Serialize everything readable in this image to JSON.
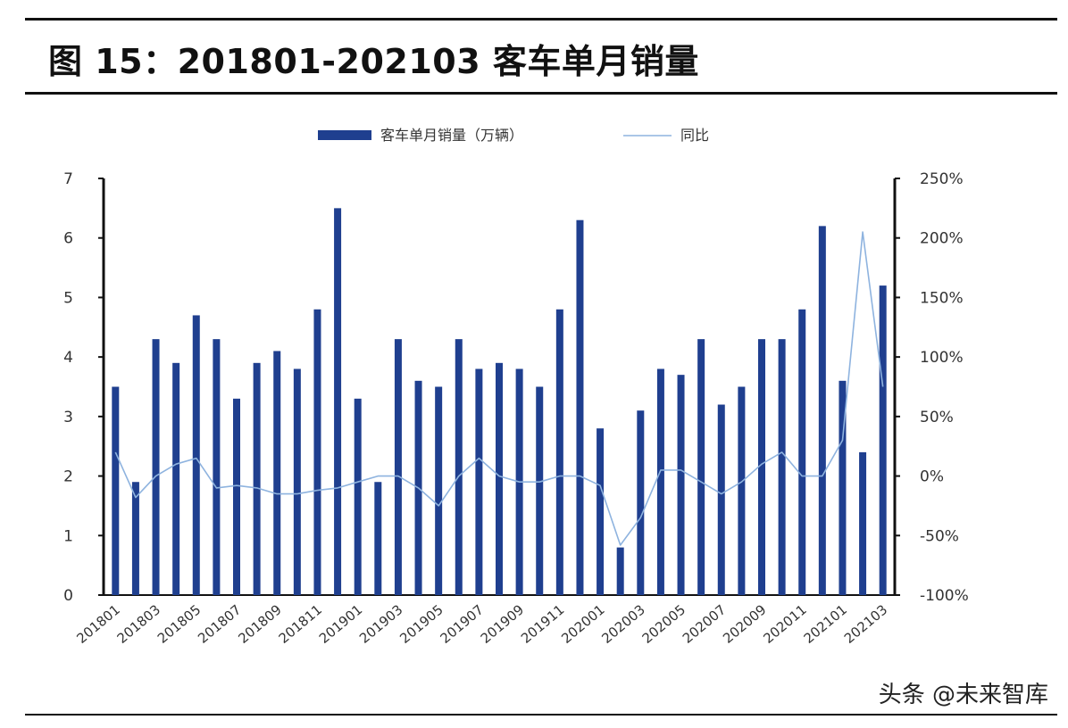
{
  "title": "图 15：201801-202103 客车单月销量",
  "watermark": "头条 @未来智库",
  "chart_data": {
    "type": "bar",
    "legend": [
      "客车单月销量（万辆）",
      "同比"
    ],
    "legend_position": "top",
    "categories": [
      "201801",
      "201802",
      "201803",
      "201804",
      "201805",
      "201806",
      "201807",
      "201808",
      "201809",
      "201810",
      "201811",
      "201812",
      "201901",
      "201902",
      "201903",
      "201904",
      "201905",
      "201906",
      "201907",
      "201908",
      "201909",
      "201910",
      "201911",
      "201912",
      "202001",
      "202002",
      "202003",
      "202004",
      "202005",
      "202006",
      "202007",
      "202008",
      "202009",
      "202010",
      "202011",
      "202012",
      "202101",
      "202102",
      "202103"
    ],
    "xtick_labels": [
      "201801",
      "201803",
      "201805",
      "201807",
      "201809",
      "201811",
      "201901",
      "201903",
      "201905",
      "201907",
      "201909",
      "201911",
      "202001",
      "202003",
      "202005",
      "202007",
      "202009",
      "202011",
      "202101",
      "202103"
    ],
    "series": [
      {
        "name": "客车单月销量（万辆）",
        "type": "bar",
        "axis": "left",
        "color": "#1f3f8f",
        "values": [
          3.5,
          1.9,
          4.3,
          3.9,
          4.7,
          4.3,
          3.3,
          3.9,
          4.1,
          3.8,
          4.8,
          6.5,
          3.3,
          1.9,
          4.3,
          3.6,
          3.5,
          4.3,
          3.8,
          3.9,
          3.8,
          3.5,
          4.8,
          6.3,
          2.8,
          0.8,
          3.1,
          3.8,
          3.7,
          4.3,
          3.2,
          3.5,
          4.3,
          4.3,
          4.8,
          6.2,
          3.6,
          2.4,
          5.2
        ]
      },
      {
        "name": "同比",
        "type": "line",
        "axis": "right",
        "color": "#8eb3df",
        "values": [
          20,
          -18,
          0,
          10,
          15,
          -10,
          -8,
          -10,
          -15,
          -15,
          -12,
          -10,
          -5,
          0,
          0,
          -10,
          -25,
          0,
          15,
          0,
          -5,
          -5,
          0,
          0,
          -8,
          -58,
          -35,
          5,
          5,
          -5,
          -15,
          -5,
          10,
          20,
          0,
          0,
          30,
          205,
          75
        ]
      }
    ],
    "ylim_left": [
      0,
      7
    ],
    "yticks_left": [
      "0",
      "1",
      "2",
      "3",
      "4",
      "5",
      "6",
      "7"
    ],
    "ylim_right": [
      -100,
      250
    ],
    "yticks_right": [
      "-100%",
      "-50%",
      "0%",
      "50%",
      "100%",
      "150%",
      "200%",
      "250%"
    ],
    "grid": false
  }
}
